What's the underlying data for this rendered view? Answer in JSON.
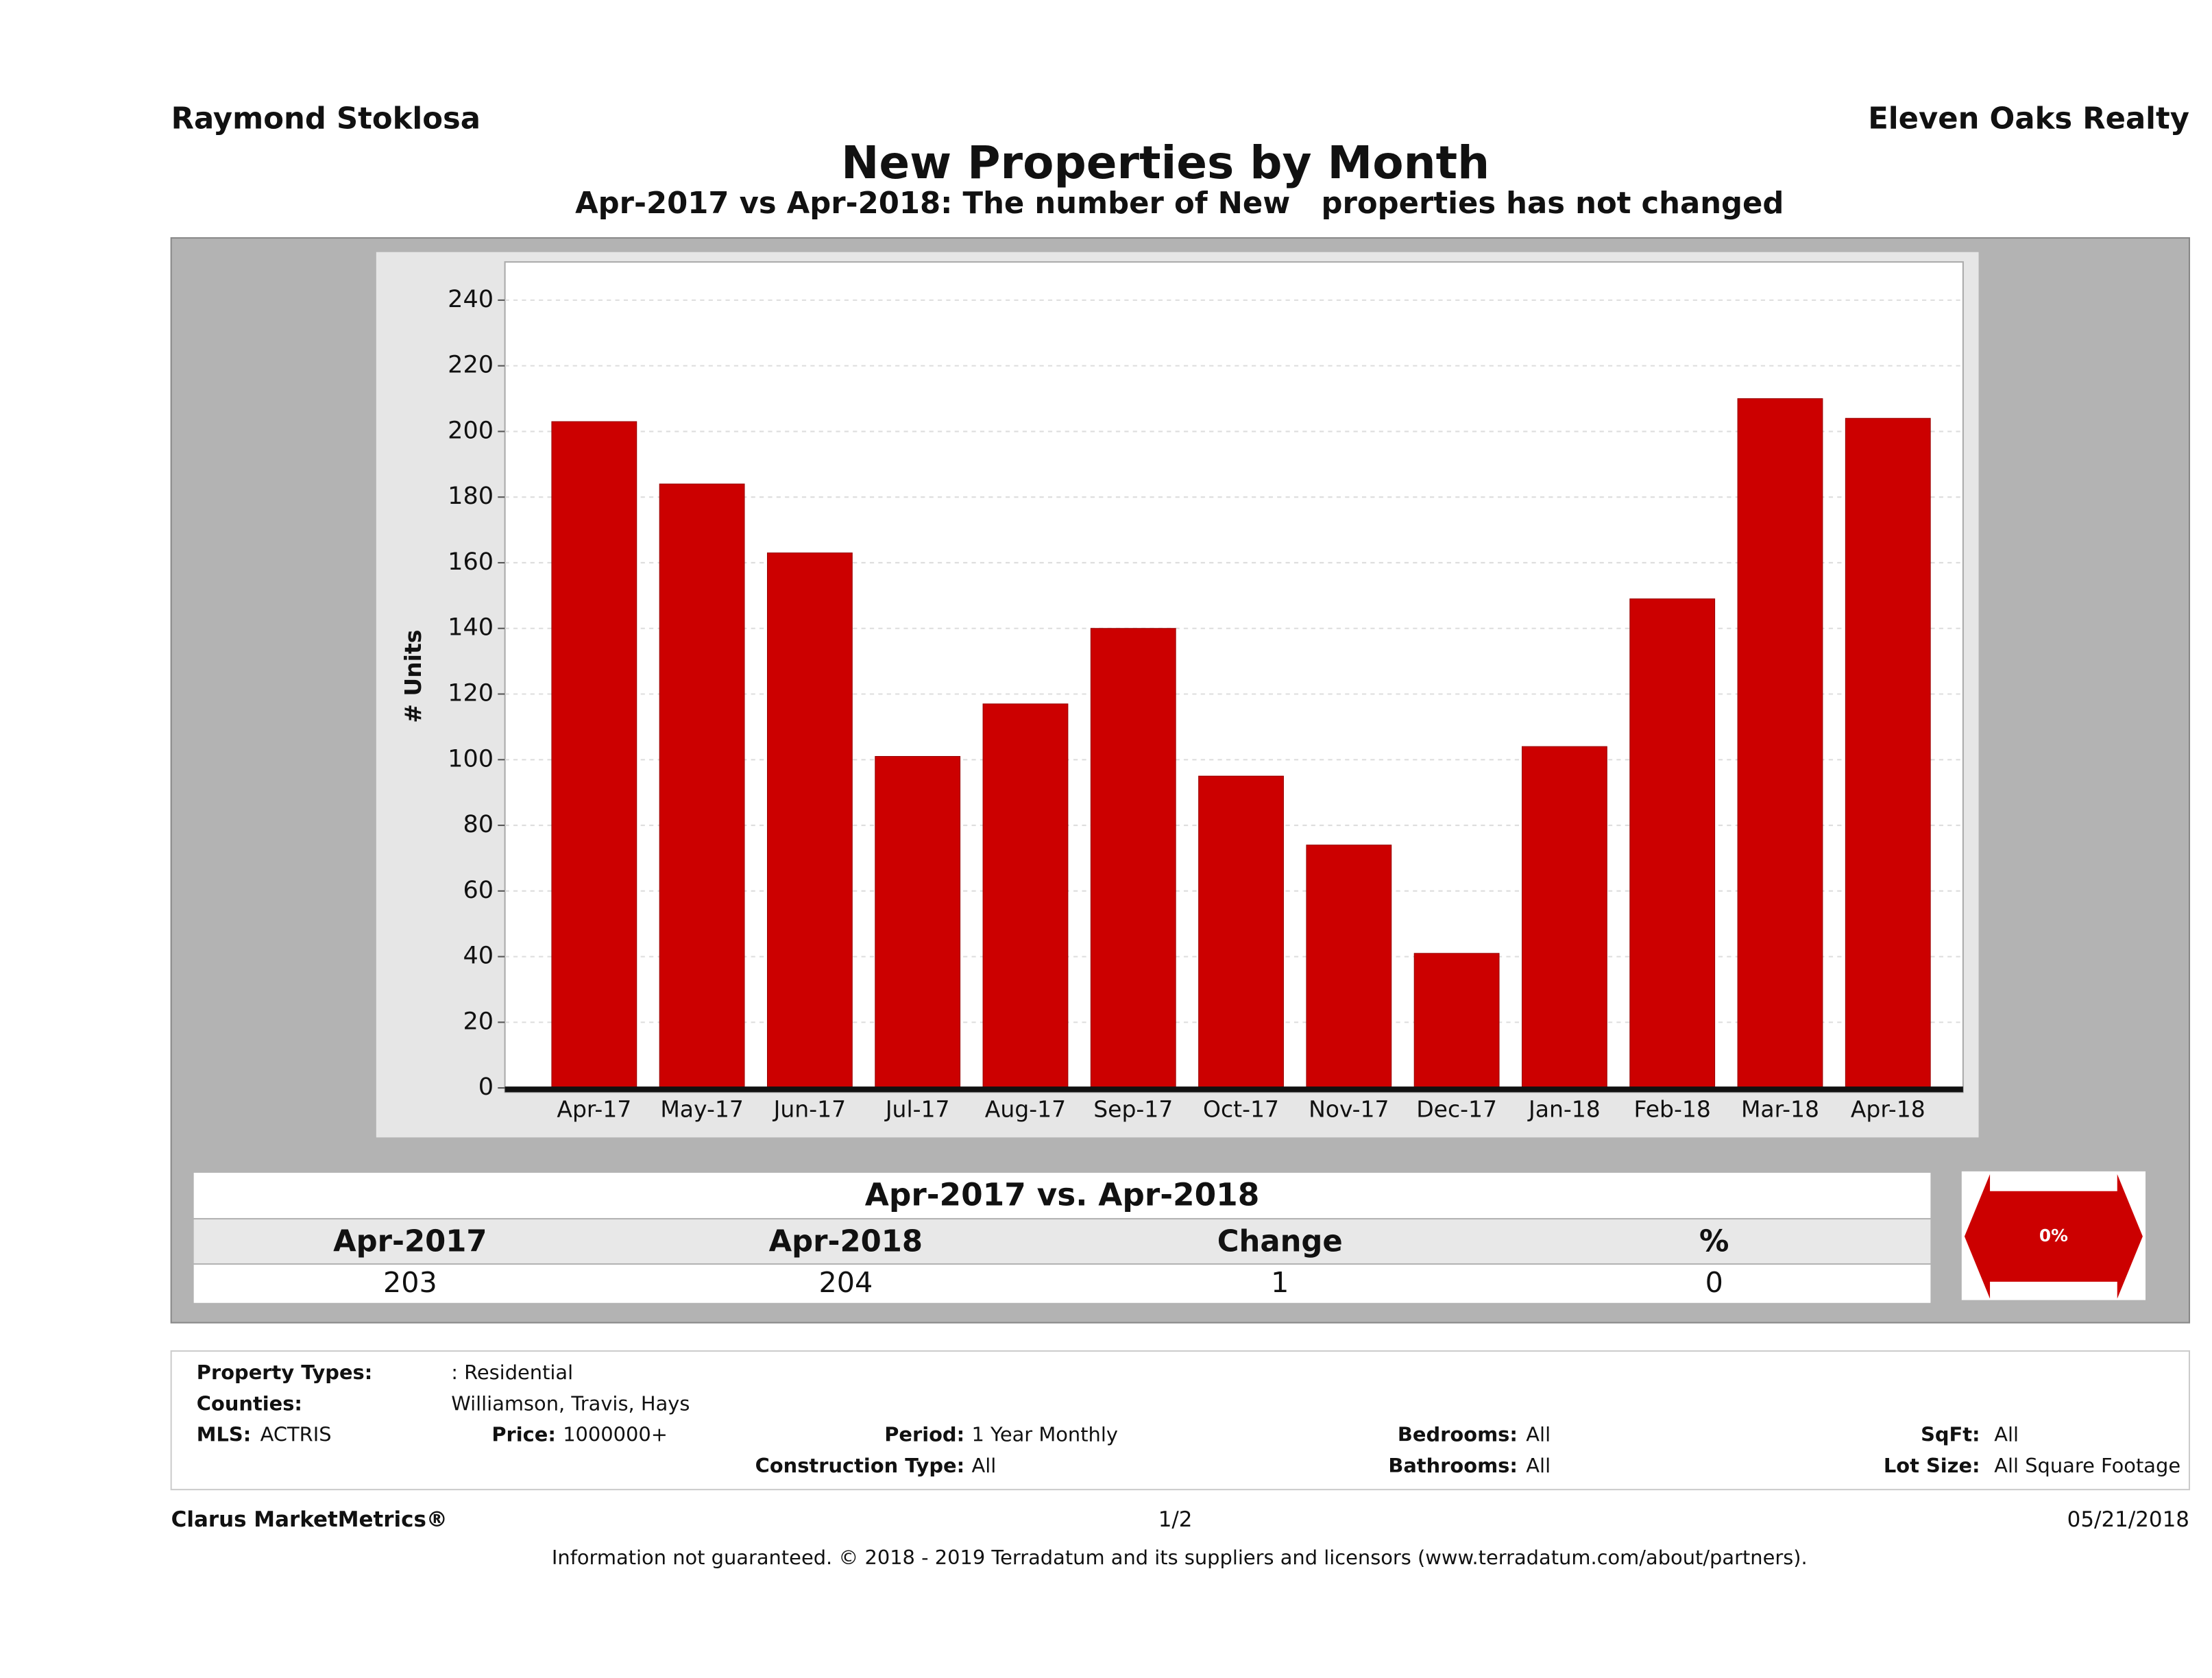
{
  "header": {
    "left": "Raymond Stoklosa",
    "right": "Eleven Oaks Realty"
  },
  "chart_data": {
    "type": "bar",
    "title": "New Properties by Month",
    "subtitle": "Apr-2017 vs Apr-2018: The number of New   properties has not changed",
    "y_label": "# Units",
    "categories": [
      "Apr-17",
      "May-17",
      "Jun-17",
      "Jul-17",
      "Aug-17",
      "Sep-17",
      "Oct-17",
      "Nov-17",
      "Dec-17",
      "Jan-18",
      "Feb-18",
      "Mar-18",
      "Apr-18"
    ],
    "values": [
      203,
      184,
      163,
      101,
      117,
      140,
      95,
      74,
      41,
      104,
      149,
      210,
      204
    ],
    "color": "#cc0000",
    "ylim": [
      0,
      250
    ],
    "yticks": [
      0,
      20,
      40,
      60,
      80,
      100,
      120,
      140,
      160,
      180,
      200,
      220,
      240
    ],
    "grid": true
  },
  "summary": {
    "title": "Apr-2017 vs. Apr-2018",
    "headers": [
      "Apr-2017",
      "Apr-2018",
      "Change",
      "%"
    ],
    "values": [
      203,
      204,
      1,
      0
    ],
    "arrow_label": "0%"
  },
  "filters": [
    {
      "label": "Property Types:",
      "value": ": Residential"
    },
    {
      "label": "Counties:",
      "value": "Williamson, Travis, Hays"
    },
    {
      "label": "MLS:",
      "value": "ACTRIS"
    },
    {
      "label": "Price:",
      "value": "1000000+"
    },
    {
      "label": "Period:",
      "value": "1 Year Monthly"
    },
    {
      "label": "Bedrooms:",
      "value": "All"
    },
    {
      "label": "SqFt:",
      "value": "All"
    },
    {
      "label": "Construction Type:",
      "value": "All"
    },
    {
      "label": "Bathrooms:",
      "value": "All"
    },
    {
      "label": "Lot Size:",
      "value": "All Square Footage"
    }
  ],
  "footer": {
    "left": "Clarus MarketMetrics®",
    "center": "1/2",
    "right": "05/21/2018",
    "disclaimer": "Information not guaranteed. © 2018 - 2019 Terradatum and its suppliers and licensors (www.terradatum.com/about/partners)."
  }
}
